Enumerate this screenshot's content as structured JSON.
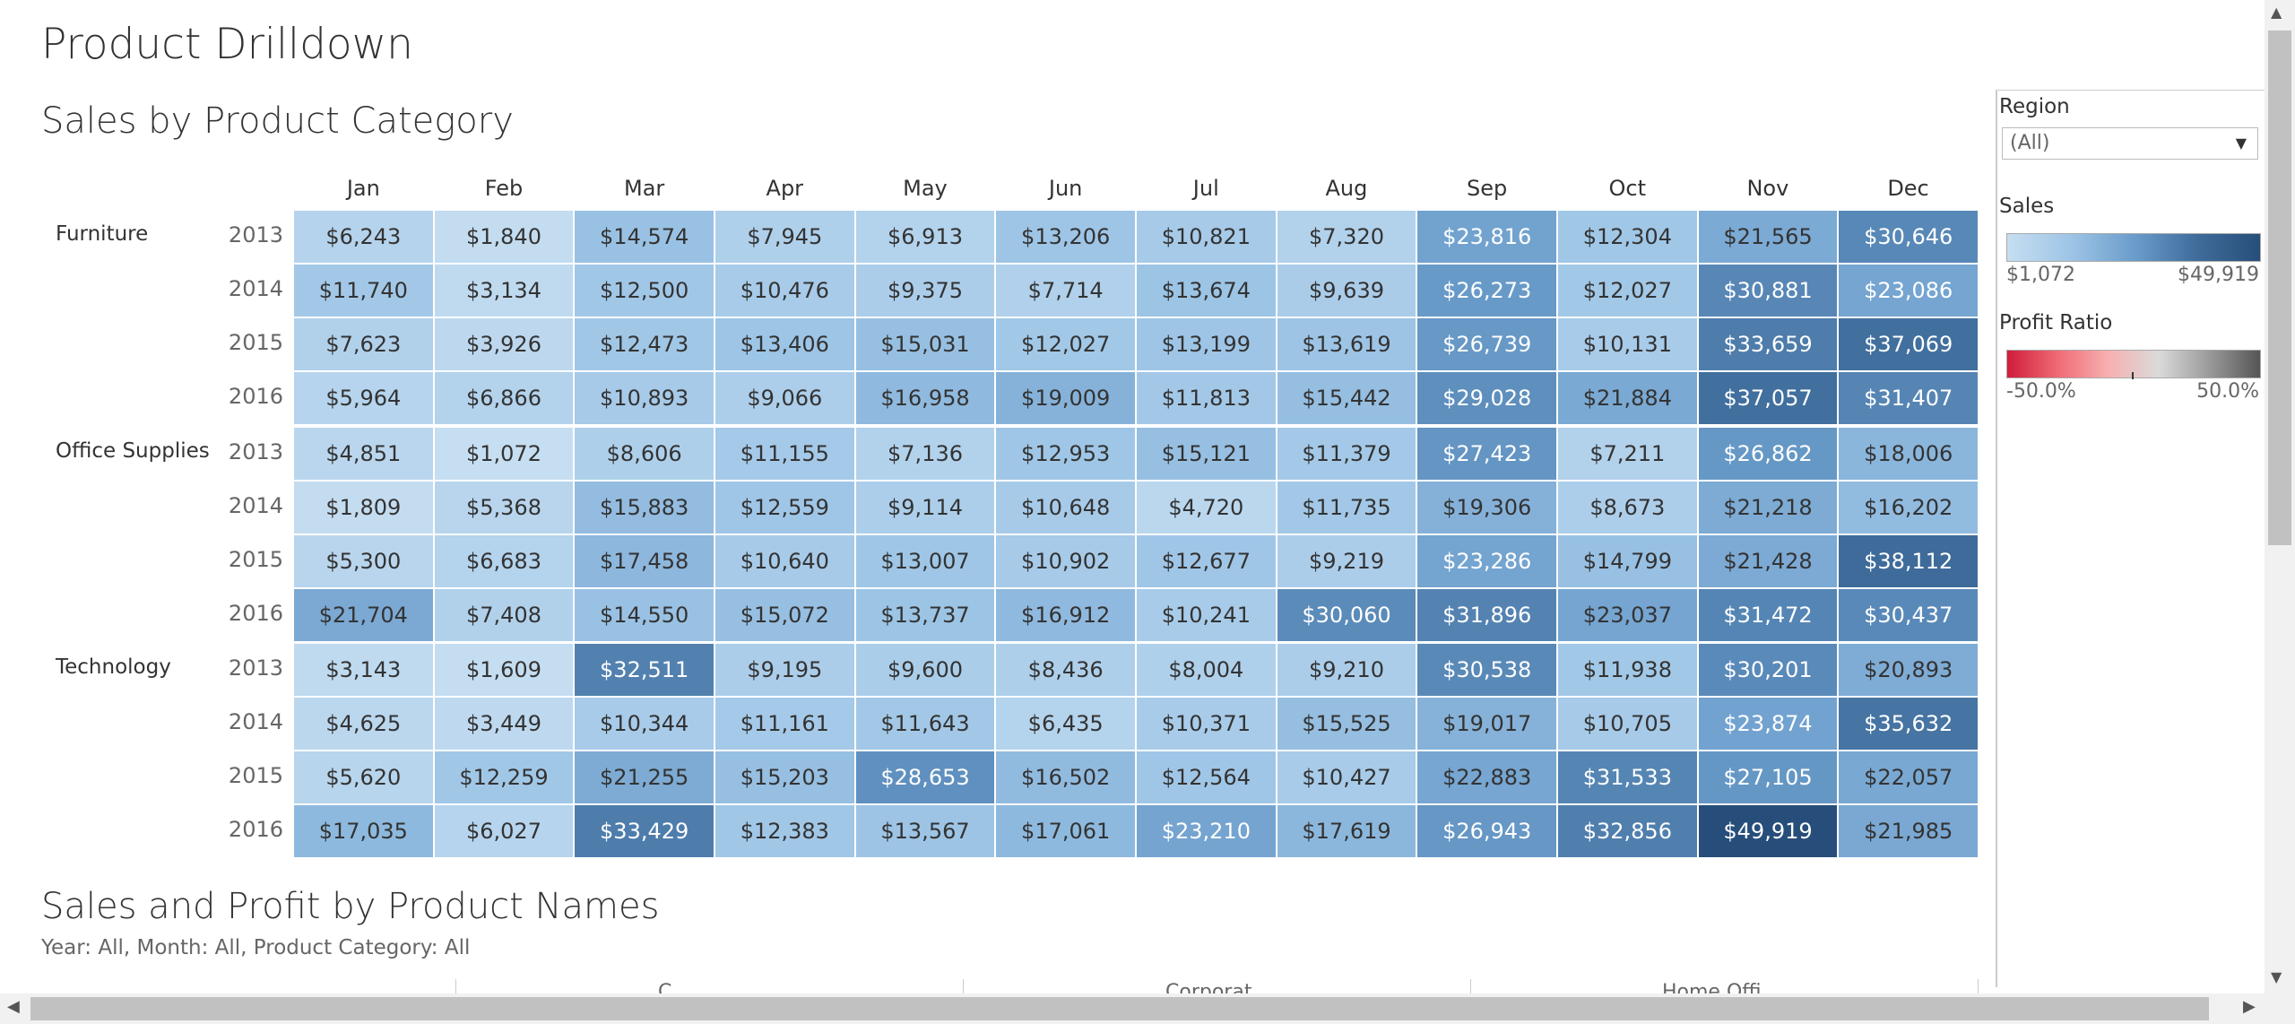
{
  "dashboard": {
    "title": "Product Drilldown"
  },
  "heatmap": {
    "title": "Sales by Product Category",
    "months": [
      "Jan",
      "Feb",
      "Mar",
      "Apr",
      "May",
      "Jun",
      "Jul",
      "Aug",
      "Sep",
      "Oct",
      "Nov",
      "Dec"
    ],
    "groups": [
      {
        "category": "Furniture",
        "years": [
          {
            "year": "2013",
            "values": [
              "$6,243",
              "$1,840",
              "$14,574",
              "$7,945",
              "$6,913",
              "$13,206",
              "$10,821",
              "$7,320",
              "$23,816",
              "$12,304",
              "$21,565",
              "$30,646"
            ]
          },
          {
            "year": "2014",
            "values": [
              "$11,740",
              "$3,134",
              "$12,500",
              "$10,476",
              "$9,375",
              "$7,714",
              "$13,674",
              "$9,639",
              "$26,273",
              "$12,027",
              "$30,881",
              "$23,086"
            ]
          },
          {
            "year": "2015",
            "values": [
              "$7,623",
              "$3,926",
              "$12,473",
              "$13,406",
              "$15,031",
              "$12,027",
              "$13,199",
              "$13,619",
              "$26,739",
              "$10,131",
              "$33,659",
              "$37,069"
            ]
          },
          {
            "year": "2016",
            "values": [
              "$5,964",
              "$6,866",
              "$10,893",
              "$9,066",
              "$16,958",
              "$19,009",
              "$11,813",
              "$15,442",
              "$29,028",
              "$21,884",
              "$37,057",
              "$31,407"
            ]
          }
        ]
      },
      {
        "category": "Office Supplies",
        "years": [
          {
            "year": "2013",
            "values": [
              "$4,851",
              "$1,072",
              "$8,606",
              "$11,155",
              "$7,136",
              "$12,953",
              "$15,121",
              "$11,379",
              "$27,423",
              "$7,211",
              "$26,862",
              "$18,006"
            ]
          },
          {
            "year": "2014",
            "values": [
              "$1,809",
              "$5,368",
              "$15,883",
              "$12,559",
              "$9,114",
              "$10,648",
              "$4,720",
              "$11,735",
              "$19,306",
              "$8,673",
              "$21,218",
              "$16,202"
            ]
          },
          {
            "year": "2015",
            "values": [
              "$5,300",
              "$6,683",
              "$17,458",
              "$10,640",
              "$13,007",
              "$10,902",
              "$12,677",
              "$9,219",
              "$23,286",
              "$14,799",
              "$21,428",
              "$38,112"
            ]
          },
          {
            "year": "2016",
            "values": [
              "$21,704",
              "$7,408",
              "$14,550",
              "$15,072",
              "$13,737",
              "$16,912",
              "$10,241",
              "$30,060",
              "$31,896",
              "$23,037",
              "$31,472",
              "$30,437"
            ]
          }
        ]
      },
      {
        "category": "Technology",
        "years": [
          {
            "year": "2013",
            "values": [
              "$3,143",
              "$1,609",
              "$32,511",
              "$9,195",
              "$9,600",
              "$8,436",
              "$8,004",
              "$9,210",
              "$30,538",
              "$11,938",
              "$30,201",
              "$20,893"
            ]
          },
          {
            "year": "2014",
            "values": [
              "$4,625",
              "$3,449",
              "$10,344",
              "$11,161",
              "$11,643",
              "$6,435",
              "$10,371",
              "$15,525",
              "$19,017",
              "$10,705",
              "$23,874",
              "$35,632"
            ]
          },
          {
            "year": "2015",
            "values": [
              "$5,620",
              "$12,259",
              "$21,255",
              "$15,203",
              "$28,653",
              "$16,502",
              "$12,564",
              "$10,427",
              "$22,883",
              "$31,533",
              "$27,105",
              "$22,057"
            ]
          },
          {
            "year": "2016",
            "values": [
              "$17,035",
              "$6,027",
              "$33,429",
              "$12,383",
              "$13,567",
              "$17,061",
              "$23,210",
              "$17,619",
              "$26,943",
              "$32,856",
              "$49,919",
              "$21,985"
            ]
          }
        ]
      }
    ]
  },
  "section2": {
    "title": "Sales and Profit by Product Names",
    "subtitle": "Year: All, Month: All, Product Category: All",
    "segments": [
      "C",
      "Corporat",
      "Home Offi"
    ]
  },
  "filters": {
    "region_label": "Region",
    "region_value": "(All)",
    "sales_label": "Sales",
    "sales_min": "$1,072",
    "sales_max": "$49,919",
    "profit_label": "Profit Ratio",
    "profit_min": "-50.0%",
    "profit_max": "50.0%"
  },
  "colors": {
    "sales_low": "#c6def1",
    "sales_high": "#274e7a",
    "profit_negative": "#d01c3a",
    "profit_positive": "#555555"
  }
}
